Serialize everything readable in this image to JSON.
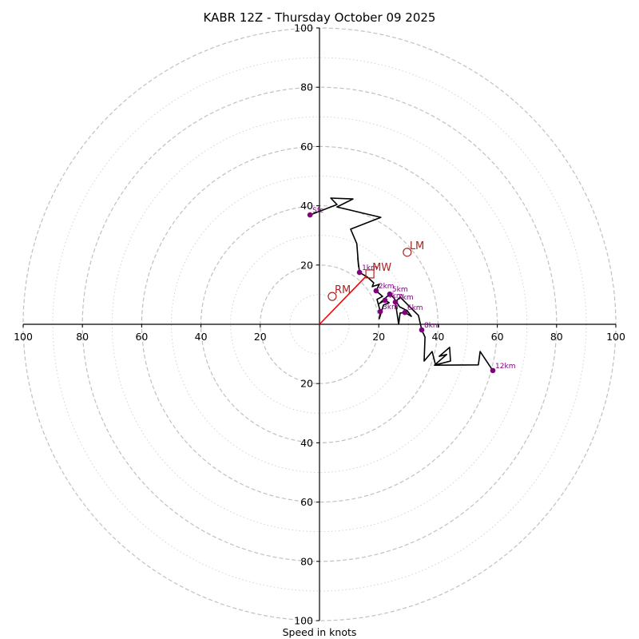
{
  "chart_data": {
    "type": "hodograph",
    "title": "KABR 12Z - Thursday October 09 2025",
    "xlabel": "Speed in knots",
    "ylabel": "",
    "range_knots": [
      -100,
      100
    ],
    "rings_major": [
      20,
      40,
      60,
      80,
      100
    ],
    "rings_minor": [
      10,
      30,
      50,
      70,
      90
    ],
    "x_tick_labels": [
      "100",
      "80",
      "60",
      "40",
      "20",
      "20",
      "40",
      "60",
      "80",
      "100"
    ],
    "x_tick_values": [
      -100,
      -80,
      -60,
      -40,
      -20,
      20,
      40,
      60,
      80,
      100
    ],
    "y_tick_labels": [
      "100",
      "80",
      "60",
      "40",
      "20",
      "20",
      "40",
      "60",
      "80",
      "100"
    ],
    "y_tick_values": [
      100,
      80,
      60,
      40,
      20,
      -20,
      -40,
      -60,
      -80,
      -100
    ],
    "trace": {
      "name": "wind profile",
      "color": "#000000",
      "points": [
        [
          -3.2,
          36.9
        ],
        [
          5.9,
          40.4
        ],
        [
          3.8,
          42.6
        ],
        [
          11.3,
          42.3
        ],
        [
          5.9,
          39.6
        ],
        [
          20.7,
          36.1
        ],
        [
          10.5,
          32.1
        ],
        [
          12.6,
          27.2
        ],
        [
          13.2,
          19.4
        ],
        [
          12.9,
          22.4
        ],
        [
          13.5,
          17.5
        ],
        [
          16.2,
          15.9
        ],
        [
          18.3,
          14.0
        ],
        [
          17.8,
          12.7
        ],
        [
          20.2,
          13.5
        ],
        [
          19.1,
          11.3
        ],
        [
          21.3,
          9.4
        ],
        [
          19.4,
          8.4
        ],
        [
          20.5,
          4.3
        ],
        [
          20.2,
          1.9
        ],
        [
          21.6,
          6.5
        ],
        [
          23.5,
          7.3
        ],
        [
          22.1,
          8.1
        ],
        [
          20.2,
          7.0
        ],
        [
          23.7,
          10.2
        ],
        [
          25.1,
          8.9
        ],
        [
          27.0,
          5.9
        ],
        [
          29.6,
          4.6
        ],
        [
          31.0,
          2.7
        ],
        [
          28.8,
          4.0
        ],
        [
          27.2,
          3.8
        ],
        [
          26.7,
          0.0
        ],
        [
          25.6,
          7.5
        ],
        [
          27.2,
          9.2
        ],
        [
          30.2,
          6.2
        ],
        [
          33.4,
          3.0
        ],
        [
          34.5,
          -1.9
        ],
        [
          35.6,
          -4.3
        ],
        [
          35.3,
          -12.4
        ],
        [
          38.0,
          -9.2
        ],
        [
          39.1,
          -13.5
        ],
        [
          42.9,
          -10.2
        ],
        [
          40.4,
          -10.8
        ],
        [
          43.9,
          -7.8
        ],
        [
          44.2,
          -12.4
        ],
        [
          38.8,
          -13.8
        ],
        [
          53.6,
          -13.7
        ],
        [
          54.2,
          -9.2
        ],
        [
          58.5,
          -15.6
        ]
      ]
    },
    "height_markers": [
      {
        "label": "Sfc",
        "u": -3.2,
        "v": 36.9
      },
      {
        "label": "1km",
        "u": 13.5,
        "v": 17.5
      },
      {
        "label": "2km",
        "u": 19.1,
        "v": 11.3
      },
      {
        "label": "3km",
        "u": 20.5,
        "v": 4.3
      },
      {
        "label": "4km",
        "u": 22.1,
        "v": 8.1
      },
      {
        "label": "5km",
        "u": 23.7,
        "v": 10.2
      },
      {
        "label": "6km",
        "u": 28.8,
        "v": 4.0
      },
      {
        "label": "7km",
        "u": 25.6,
        "v": 7.5
      },
      {
        "label": "8km",
        "u": 34.5,
        "v": -1.9
      },
      {
        "label": "12km",
        "u": 58.5,
        "v": -15.6
      }
    ],
    "storm_motion": [
      {
        "label": "RM",
        "u": 4.3,
        "v": 9.4,
        "marker": "circle"
      },
      {
        "label": "LM",
        "u": 29.6,
        "v": 24.3,
        "marker": "circle"
      },
      {
        "label": "MW",
        "u": 17.0,
        "v": 17.0,
        "marker": "square"
      }
    ],
    "shear_vector": {
      "from": [
        0,
        0
      ],
      "to": [
        15.7,
        16.2
      ],
      "color": "#ff0000"
    },
    "colors": {
      "marker": "#800080",
      "storm_motion": "#b22222",
      "ring": "#c0c0c0"
    },
    "grid": true
  }
}
